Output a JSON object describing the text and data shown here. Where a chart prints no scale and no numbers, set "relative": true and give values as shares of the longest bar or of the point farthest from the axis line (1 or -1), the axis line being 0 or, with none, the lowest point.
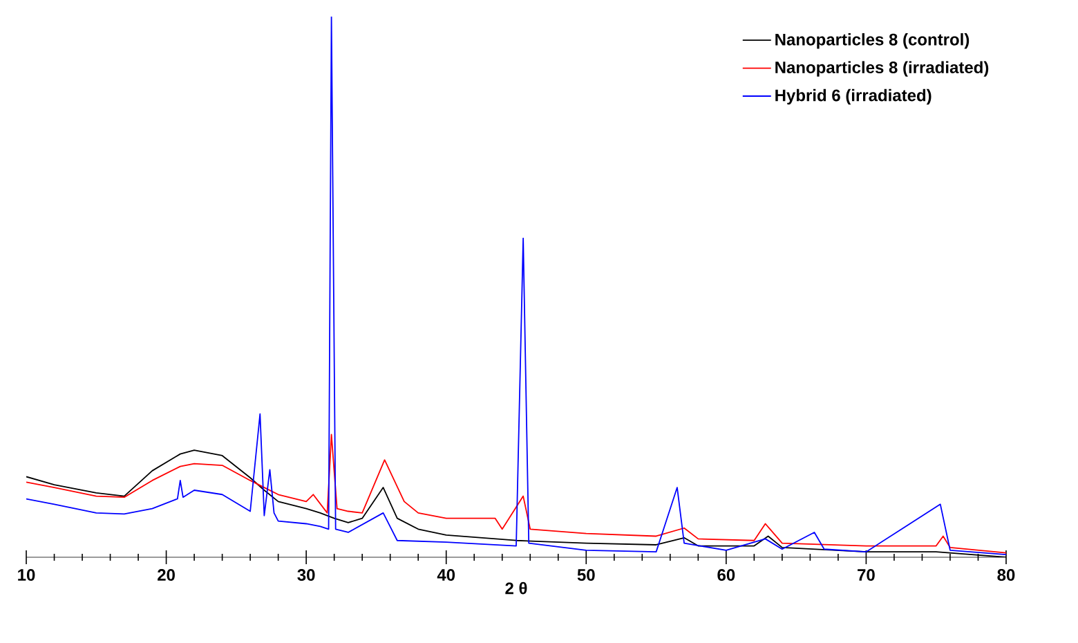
{
  "chart_data": {
    "type": "line",
    "xlabel": "2 θ",
    "relative": true,
    "xlim": [
      10,
      80
    ],
    "xticks": [
      10,
      20,
      30,
      40,
      50,
      60,
      70,
      80
    ],
    "legend": "top right",
    "grid": false,
    "marker": "none",
    "line_style": "solid",
    "series": [
      {
        "name": "Nanoparticles 8 (control)",
        "color": "#000000",
        "x": [
          10,
          12,
          15,
          17,
          19,
          21,
          22,
          24,
          26,
          27,
          28,
          30,
          31,
          32,
          33,
          34,
          35.5,
          36.5,
          38,
          40,
          45,
          50,
          55,
          57,
          58,
          62,
          63,
          64,
          70,
          75,
          80
        ],
        "values": [
          0.149,
          0.134,
          0.119,
          0.113,
          0.16,
          0.191,
          0.198,
          0.188,
          0.147,
          0.124,
          0.103,
          0.09,
          0.082,
          0.072,
          0.064,
          0.072,
          0.129,
          0.072,
          0.052,
          0.041,
          0.031,
          0.026,
          0.023,
          0.036,
          0.021,
          0.021,
          0.039,
          0.018,
          0.01,
          0.01,
          0.0
        ]
      },
      {
        "name": "Nanoparticles 8 (irradiated)",
        "color": "#ff0000",
        "x": [
          10,
          12,
          15,
          17,
          19,
          21,
          22,
          24,
          26,
          27,
          28,
          30,
          30.5,
          31.5,
          31.8,
          32.2,
          33,
          34,
          35.6,
          37,
          38,
          40,
          43.5,
          44,
          45.5,
          46,
          50,
          55,
          57,
          58,
          62,
          62.8,
          64,
          70,
          75,
          75.5,
          76,
          80
        ],
        "values": [
          0.139,
          0.129,
          0.113,
          0.111,
          0.142,
          0.168,
          0.173,
          0.17,
          0.142,
          0.129,
          0.116,
          0.103,
          0.116,
          0.082,
          0.227,
          0.09,
          0.085,
          0.082,
          0.18,
          0.103,
          0.082,
          0.072,
          0.072,
          0.052,
          0.113,
          0.052,
          0.044,
          0.039,
          0.054,
          0.034,
          0.031,
          0.062,
          0.026,
          0.021,
          0.021,
          0.039,
          0.018,
          0.008
        ]
      },
      {
        "name": "Hybrid 6 (irradiated)",
        "color": "#0000ff",
        "x": [
          10,
          12,
          15,
          17,
          19,
          20.8,
          21,
          21.2,
          22,
          24,
          26,
          26.7,
          27,
          27.4,
          27.7,
          28,
          30,
          31,
          31.6,
          31.8,
          32.1,
          33,
          35.5,
          36.5,
          40,
          45,
          45.5,
          45.9,
          50,
          55,
          56.5,
          57,
          60,
          62.8,
          64,
          66.3,
          67,
          70,
          75.3,
          76,
          80
        ],
        "values": [
          0.108,
          0.098,
          0.082,
          0.08,
          0.09,
          0.108,
          0.142,
          0.111,
          0.124,
          0.116,
          0.085,
          0.265,
          0.077,
          0.162,
          0.082,
          0.067,
          0.062,
          0.057,
          0.052,
          1,
          0.052,
          0.046,
          0.082,
          0.031,
          0.028,
          0.021,
          0.59,
          0.026,
          0.013,
          0.01,
          0.129,
          0.026,
          0.013,
          0.034,
          0.015,
          0.046,
          0.015,
          0.01,
          0.098,
          0.013,
          0.005
        ]
      }
    ]
  }
}
